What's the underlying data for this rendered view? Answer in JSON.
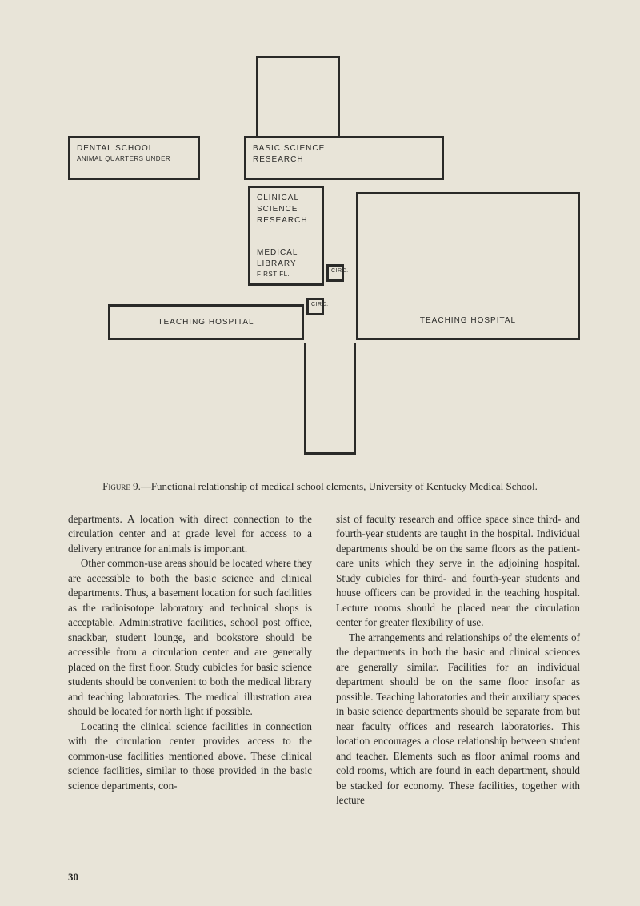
{
  "diagram": {
    "dental_school": "DENTAL SCHOOL",
    "dental_sub": "ANIMAL QUARTERS UNDER",
    "basic_science": "BASIC SCIENCE",
    "basic_sub": "RESEARCH",
    "clinical_top1": "CLINICAL",
    "clinical_top2": "SCIENCE",
    "clinical_top3": "RESEARCH",
    "clinical_bot1": "MEDICAL",
    "clinical_bot2": "LIBRARY",
    "clinical_bot3": "FIRST FL.",
    "circ1": "CIRC.",
    "circ2": "CIRC.",
    "teach1": "TEACHING HOSPITAL",
    "teach2": "TEACHING HOSPITAL"
  },
  "caption": {
    "fig": "Figure 9.",
    "rest": "—Functional relationship of medical school elements, University of Kentucky Medical School."
  },
  "body": {
    "left": {
      "p1": "departments. A location with direct connection to the circulation center and at grade level for access to a delivery entrance for animals is important.",
      "p2": "Other common-use areas should be located where they are accessible to both the basic science and clinical departments. Thus, a basement location for such facilities as the radioisotope laboratory and technical shops is acceptable. Administrative facilities, school post office, snackbar, student lounge, and bookstore should be accessible from a circulation center and are generally placed on the first floor. Study cubicles for basic science students should be convenient to both the medical library and teaching laboratories. The medical illustration area should be located for north light if possible.",
      "p3": "Locating the clinical science facilities in connection with the circulation center provides access to the common-use facilities mentioned above. These clinical science facilities, similar to those provided in the basic science departments, con-"
    },
    "right": {
      "p1": "sist of faculty research and office space since third- and fourth-year students are taught in the hospital. Individual departments should be on the same floors as the patient-care units which they serve in the adjoining hospital. Study cubicles for third- and fourth-year students and house officers can be provided in the teaching hospital. Lecture rooms should be placed near the circulation center for greater flexibility of use.",
      "p2": "The arrangements and relationships of the elements of the departments in both the basic and clinical sciences are generally similar. Facilities for an individual department should be on the same floor insofar as possible. Teaching laboratories and their auxiliary spaces in basic science departments should be separate from but near faculty offices and research laboratories. This location encourages a close relationship between student and teacher. Elements such as floor animal rooms and cold rooms, which are found in each department, should be stacked for economy. These facilities, together with lecture"
    }
  },
  "page_number": "30",
  "colors": {
    "bg": "#e8e4d8",
    "ink": "#2a2a28"
  }
}
